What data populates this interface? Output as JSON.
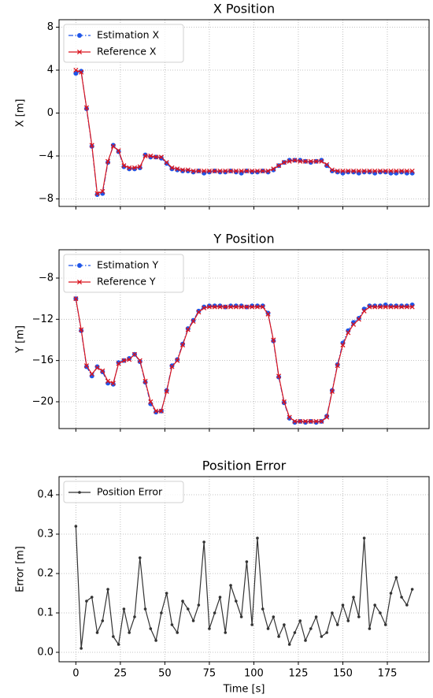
{
  "chart_data": [
    {
      "type": "line",
      "title": "X Position",
      "ylabel": "X [m]",
      "legend": "upper left",
      "grid": true,
      "xtick_labels": false,
      "x": [
        0,
        3,
        6,
        9,
        12,
        15,
        18,
        21,
        24,
        27,
        30,
        33,
        36,
        39,
        42,
        45,
        48,
        51,
        54,
        57,
        60,
        63,
        66,
        69,
        72,
        75,
        78,
        81,
        84,
        87,
        90,
        93,
        96,
        99,
        102,
        105,
        108,
        111,
        114,
        117,
        120,
        123,
        126,
        129,
        132,
        135,
        138,
        141,
        144,
        147,
        150,
        153,
        156,
        159,
        162,
        165,
        168,
        171,
        174,
        177,
        180,
        183,
        186,
        189
      ],
      "xlim": [
        -9.45,
        198.45
      ],
      "xticks": [
        0,
        25,
        50,
        75,
        100,
        125,
        150,
        175
      ],
      "ylim": [
        -8.7,
        8.7
      ],
      "yticks": [
        {
          "value": -8,
          "label": "−8"
        },
        {
          "value": -4,
          "label": "−4"
        },
        0,
        4,
        8
      ],
      "series": [
        {
          "name": "Estimation X",
          "color": "#1f55e8",
          "marker": "o",
          "linestyle": "dashdot",
          "values": [
            3.7,
            3.9,
            0.4,
            -3.1,
            -7.6,
            -7.5,
            -4.6,
            -3.0,
            -3.6,
            -5.0,
            -5.2,
            -5.2,
            -5.1,
            -3.9,
            -4.1,
            -4.1,
            -4.2,
            -4.7,
            -5.2,
            -5.3,
            -5.4,
            -5.4,
            -5.5,
            -5.4,
            -5.6,
            -5.5,
            -5.4,
            -5.5,
            -5.5,
            -5.4,
            -5.5,
            -5.6,
            -5.4,
            -5.5,
            -5.5,
            -5.4,
            -5.5,
            -5.3,
            -4.9,
            -4.6,
            -4.4,
            -4.4,
            -4.4,
            -4.5,
            -4.6,
            -4.5,
            -4.4,
            -4.9,
            -5.4,
            -5.5,
            -5.6,
            -5.5,
            -5.5,
            -5.6,
            -5.5,
            -5.5,
            -5.6,
            -5.5,
            -5.5,
            -5.6,
            -5.6,
            -5.5,
            -5.6,
            -5.6
          ]
        },
        {
          "name": "Reference X",
          "color": "#d9141e",
          "marker": "x",
          "linestyle": "solid",
          "values": [
            4,
            3.8,
            0.5,
            -3,
            -7.5,
            -7.3,
            -4.5,
            -3.1,
            -3.5,
            -4.9,
            -5.1,
            -5.1,
            -5.0,
            -4.0,
            -4.0,
            -4.1,
            -4.1,
            -4.6,
            -5.1,
            -5.2,
            -5.3,
            -5.3,
            -5.4,
            -5.4,
            -5.4,
            -5.4,
            -5.4,
            -5.4,
            -5.4,
            -5.4,
            -5.4,
            -5.4,
            -5.4,
            -5.4,
            -5.4,
            -5.4,
            -5.4,
            -5.2,
            -4.9,
            -4.6,
            -4.5,
            -4.4,
            -4.5,
            -4.5,
            -4.5,
            -4.5,
            -4.5,
            -4.8,
            -5.3,
            -5.4,
            -5.4,
            -5.4,
            -5.4,
            -5.4,
            -5.4,
            -5.4,
            -5.4,
            -5.4,
            -5.4,
            -5.4,
            -5.4,
            -5.4,
            -5.4,
            -5.4
          ]
        }
      ]
    },
    {
      "type": "line",
      "title": "Y Position",
      "ylabel": "Y [m]",
      "legend": "upper left",
      "grid": true,
      "xtick_labels": false,
      "x": [
        0,
        3,
        6,
        9,
        12,
        15,
        18,
        21,
        24,
        27,
        30,
        33,
        36,
        39,
        42,
        45,
        48,
        51,
        54,
        57,
        60,
        63,
        66,
        69,
        72,
        75,
        78,
        81,
        84,
        87,
        90,
        93,
        96,
        99,
        102,
        105,
        108,
        111,
        114,
        117,
        120,
        123,
        126,
        129,
        132,
        135,
        138,
        141,
        144,
        147,
        150,
        153,
        156,
        159,
        162,
        165,
        168,
        171,
        174,
        177,
        180,
        183,
        186,
        189
      ],
      "xlim": [
        -9.45,
        198.45
      ],
      "xticks": [
        0,
        25,
        50,
        75,
        100,
        125,
        150,
        175
      ],
      "ylim": [
        -22.6,
        -5.25
      ],
      "yticks": [
        {
          "value": -20,
          "label": "−20"
        },
        {
          "value": -16,
          "label": "−16"
        },
        {
          "value": -12,
          "label": "−12"
        },
        {
          "value": -8,
          "label": "−8"
        }
      ],
      "series": [
        {
          "name": "Estimation Y",
          "color": "#1f55e8",
          "marker": "o",
          "linestyle": "dashdot",
          "values": [
            -10.0,
            -13.1,
            -16.6,
            -17.5,
            -16.6,
            -17.1,
            -18.2,
            -18.3,
            -16.2,
            -16.0,
            -15.8,
            -15.4,
            -16.1,
            -18.1,
            -20.2,
            -21.0,
            -20.9,
            -18.9,
            -16.5,
            -15.9,
            -14.4,
            -12.9,
            -12.1,
            -11.2,
            -10.8,
            -10.7,
            -10.7,
            -10.7,
            -10.8,
            -10.7,
            -10.7,
            -10.7,
            -10.8,
            -10.7,
            -10.7,
            -10.7,
            -11.4,
            -14.1,
            -17.6,
            -20.1,
            -21.6,
            -22.0,
            -21.9,
            -22.0,
            -21.9,
            -22.0,
            -21.9,
            -21.4,
            -18.9,
            -16.4,
            -14.3,
            -13.1,
            -12.3,
            -11.9,
            -11.0,
            -10.7,
            -10.7,
            -10.7,
            -10.6,
            -10.7,
            -10.7,
            -10.7,
            -10.7,
            -10.6
          ]
        },
        {
          "name": "Reference Y",
          "color": "#d9141e",
          "marker": "x",
          "linestyle": "solid",
          "values": [
            -10,
            -13,
            -16.5,
            -17.3,
            -16.7,
            -17,
            -18,
            -18.2,
            -16.3,
            -16,
            -15.9,
            -15.4,
            -16,
            -18,
            -20,
            -20.9,
            -20.9,
            -19,
            -16.6,
            -16,
            -14.5,
            -13,
            -12.2,
            -11.3,
            -10.9,
            -10.8,
            -10.8,
            -10.8,
            -10.8,
            -10.8,
            -10.8,
            -10.8,
            -10.8,
            -10.8,
            -10.8,
            -10.8,
            -11.5,
            -14,
            -17.5,
            -20,
            -21.5,
            -21.9,
            -21.9,
            -21.9,
            -21.9,
            -21.9,
            -21.9,
            -21.5,
            -19,
            -16.5,
            -14.5,
            -13.3,
            -12.5,
            -12,
            -11.2,
            -10.8,
            -10.8,
            -10.8,
            -10.8,
            -10.8,
            -10.8,
            -10.8,
            -10.8,
            -10.8
          ]
        }
      ]
    },
    {
      "type": "line",
      "title": "Position Error",
      "ylabel": "Error [m]",
      "xlabel": "Time [s]",
      "legend": "upper left",
      "grid": true,
      "xtick_labels": true,
      "x": [
        0,
        3,
        6,
        9,
        12,
        15,
        18,
        21,
        24,
        27,
        30,
        33,
        36,
        39,
        42,
        45,
        48,
        51,
        54,
        57,
        60,
        63,
        66,
        69,
        72,
        75,
        78,
        81,
        84,
        87,
        90,
        93,
        96,
        99,
        102,
        105,
        108,
        111,
        114,
        117,
        120,
        123,
        126,
        129,
        132,
        135,
        138,
        141,
        144,
        147,
        150,
        153,
        156,
        159,
        162,
        165,
        168,
        171,
        174,
        177,
        180,
        183,
        186,
        189
      ],
      "xlim": [
        -9.45,
        198.45
      ],
      "xticks": [
        0,
        25,
        50,
        75,
        100,
        125,
        150,
        175
      ],
      "ylim": [
        -0.024,
        0.446
      ],
      "yticks": [
        {
          "value": 0,
          "label": "0.0"
        },
        0.1,
        0.2,
        0.3,
        0.4
      ],
      "series": [
        {
          "name": "Position Error",
          "color": "#333333",
          "marker": ".",
          "linestyle": "solid",
          "values": [
            0.32,
            0.01,
            0.13,
            0.14,
            0.05,
            0.08,
            0.16,
            0.04,
            0.02,
            0.11,
            0.05,
            0.09,
            0.24,
            0.11,
            0.06,
            0.03,
            0.1,
            0.15,
            0.07,
            0.05,
            0.13,
            0.11,
            0.08,
            0.12,
            0.28,
            0.06,
            0.1,
            0.14,
            0.05,
            0.17,
            0.13,
            0.09,
            0.23,
            0.07,
            0.29,
            0.11,
            0.06,
            0.09,
            0.04,
            0.07,
            0.02,
            0.05,
            0.08,
            0.03,
            0.06,
            0.09,
            0.04,
            0.05,
            0.1,
            0.07,
            0.12,
            0.08,
            0.14,
            0.09,
            0.29,
            0.06,
            0.12,
            0.1,
            0.07,
            0.15,
            0.19,
            0.14,
            0.12,
            0.16
          ]
        }
      ]
    }
  ]
}
